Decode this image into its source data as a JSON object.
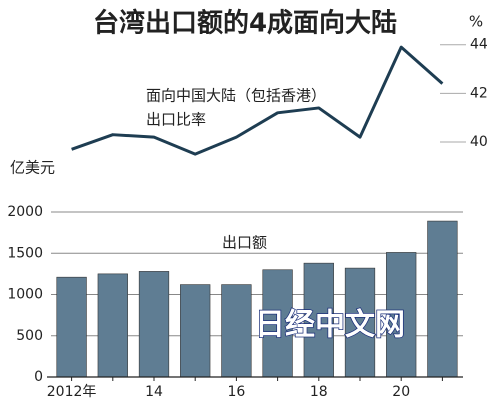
{
  "chart_data": {
    "type": "bar_line",
    "title": "台湾出口额的4成面向大陆",
    "y_label": "亿美元",
    "y2_label": "%",
    "bar_label": "出口额",
    "line_label": [
      "面向中国大陆（包括香港）",
      "出口比率"
    ],
    "watermark": "日经中文网",
    "categories": [
      "2012年",
      null,
      "14",
      null,
      "16",
      null,
      "18",
      null,
      "20",
      null
    ],
    "series": [
      {
        "name": "出口额",
        "type": "bar",
        "color": "#5f7d93",
        "values": [
          1210,
          1250,
          1280,
          1120,
          1120,
          1300,
          1380,
          1320,
          1510,
          1890
        ]
      },
      {
        "name": "出口比率",
        "type": "line",
        "axis": "y2",
        "color": "#1e3d52",
        "values": [
          39.7,
          40.3,
          40.2,
          39.5,
          40.2,
          41.2,
          41.4,
          40.2,
          43.9,
          42.4
        ]
      }
    ],
    "ylim": [
      0,
      2200
    ],
    "yticks": [
      0,
      500,
      1000,
      1500,
      2000
    ],
    "y2lim": [
      39.3,
      44.4
    ],
    "y2ticks": [
      40,
      42,
      44
    ],
    "grid": true
  }
}
